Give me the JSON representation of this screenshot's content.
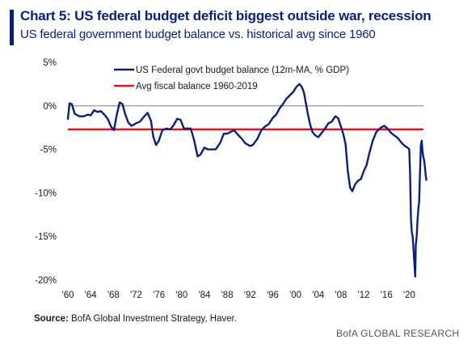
{
  "header": {
    "title": "Chart 5: US federal budget deficit biggest outside war, recession",
    "subtitle": "US federal government budget balance vs. historical avg since 1960"
  },
  "footer": {
    "source_label": "Source:",
    "source_text": "BofA Global Investment Strategy, Haver.",
    "brand": "BofA GLOBAL RESEARCH"
  },
  "colors": {
    "title": "#0b1f7a",
    "series_line": "#0b1f7a",
    "average_line": "#e8141c",
    "zero_line": "#8c8c8c"
  },
  "chart_data": {
    "type": "line",
    "title": "Chart 5: US federal budget deficit biggest outside war, recession",
    "subtitle": "US federal government budget balance vs. historical avg since 1960",
    "xlabel": "",
    "ylabel": "",
    "xlim": [
      1960,
      2022.5
    ],
    "ylim": [
      -20,
      5
    ],
    "x_ticks": [
      1960,
      1964,
      1968,
      1972,
      1976,
      1980,
      1984,
      1988,
      1992,
      1996,
      2000,
      2004,
      2008,
      2012,
      2016,
      2020
    ],
    "x_tick_labels": [
      "'60",
      "'64",
      "'68",
      "'72",
      "'76",
      "'80",
      "'84",
      "'88",
      "'92",
      "'96",
      "'00",
      "'04",
      "'08",
      "'12",
      "'16",
      "'20"
    ],
    "y_ticks": [
      5,
      0,
      -5,
      -10,
      -15,
      -20
    ],
    "y_tick_labels": [
      "5%",
      "0%",
      "-5%",
      "-10%",
      "-15%",
      "-20%"
    ],
    "grid": false,
    "legend_position": "top-left",
    "reference_lines": [
      {
        "y": 0
      }
    ],
    "series": [
      {
        "name": "US Federal govt budget balance (12m-MA, % GDP)",
        "color": "#0b1f7a",
        "points": [
          [
            1960.0,
            -1.5
          ],
          [
            1960.3,
            0.3
          ],
          [
            1960.7,
            0.2
          ],
          [
            1961.2,
            -0.9
          ],
          [
            1962.0,
            -1.2
          ],
          [
            1962.8,
            -1.2
          ],
          [
            1963.5,
            -1.0
          ],
          [
            1964.0,
            -1.1
          ],
          [
            1964.6,
            -0.5
          ],
          [
            1965.2,
            -0.7
          ],
          [
            1965.8,
            -0.6
          ],
          [
            1966.4,
            -1.0
          ],
          [
            1967.0,
            -1.5
          ],
          [
            1967.6,
            -2.4
          ],
          [
            1968.1,
            -2.8
          ],
          [
            1968.6,
            -1.0
          ],
          [
            1969.1,
            0.4
          ],
          [
            1969.6,
            0.2
          ],
          [
            1970.0,
            -0.8
          ],
          [
            1970.6,
            -1.9
          ],
          [
            1971.2,
            -2.3
          ],
          [
            1972.0,
            -2.0
          ],
          [
            1972.7,
            -1.8
          ],
          [
            1973.3,
            -1.3
          ],
          [
            1974.0,
            -0.8
          ],
          [
            1974.6,
            -1.7
          ],
          [
            1975.0,
            -3.5
          ],
          [
            1975.5,
            -4.5
          ],
          [
            1976.0,
            -4.0
          ],
          [
            1976.6,
            -2.8
          ],
          [
            1977.3,
            -2.6
          ],
          [
            1978.0,
            -2.7
          ],
          [
            1978.6,
            -2.2
          ],
          [
            1979.2,
            -1.5
          ],
          [
            1979.8,
            -1.6
          ],
          [
            1980.4,
            -2.6
          ],
          [
            1981.0,
            -2.6
          ],
          [
            1981.6,
            -2.6
          ],
          [
            1982.2,
            -4.0
          ],
          [
            1982.8,
            -5.8
          ],
          [
            1983.3,
            -5.6
          ],
          [
            1984.0,
            -4.8
          ],
          [
            1984.6,
            -5.0
          ],
          [
            1985.4,
            -5.0
          ],
          [
            1986.0,
            -5.0
          ],
          [
            1986.8,
            -4.2
          ],
          [
            1987.4,
            -3.2
          ],
          [
            1988.0,
            -3.2
          ],
          [
            1988.6,
            -3.0
          ],
          [
            1989.2,
            -2.8
          ],
          [
            1990.0,
            -3.4
          ],
          [
            1990.6,
            -3.8
          ],
          [
            1991.2,
            -4.3
          ],
          [
            1992.0,
            -4.6
          ],
          [
            1992.5,
            -4.5
          ],
          [
            1993.3,
            -3.8
          ],
          [
            1994.0,
            -2.8
          ],
          [
            1994.6,
            -2.4
          ],
          [
            1995.3,
            -2.1
          ],
          [
            1996.0,
            -1.4
          ],
          [
            1996.6,
            -1.0
          ],
          [
            1997.2,
            -0.3
          ],
          [
            1997.8,
            0.2
          ],
          [
            1998.4,
            0.8
          ],
          [
            1999.0,
            1.2
          ],
          [
            1999.6,
            1.6
          ],
          [
            2000.2,
            2.2
          ],
          [
            2000.7,
            2.5
          ],
          [
            2001.1,
            2.2
          ],
          [
            2001.5,
            1.5
          ],
          [
            2001.8,
            0.4
          ],
          [
            2002.2,
            -1.0
          ],
          [
            2002.6,
            -2.2
          ],
          [
            2003.0,
            -3.0
          ],
          [
            2003.5,
            -3.4
          ],
          [
            2004.0,
            -3.6
          ],
          [
            2004.6,
            -3.1
          ],
          [
            2005.2,
            -2.6
          ],
          [
            2005.8,
            -2.0
          ],
          [
            2006.4,
            -1.8
          ],
          [
            2007.0,
            -1.2
          ],
          [
            2007.5,
            -1.4
          ],
          [
            2008.0,
            -2.4
          ],
          [
            2008.4,
            -3.2
          ],
          [
            2008.8,
            -4.4
          ],
          [
            2009.2,
            -7.5
          ],
          [
            2009.6,
            -9.4
          ],
          [
            2010.0,
            -9.8
          ],
          [
            2010.5,
            -9.0
          ],
          [
            2011.0,
            -8.6
          ],
          [
            2011.5,
            -8.4
          ],
          [
            2012.0,
            -7.5
          ],
          [
            2012.5,
            -6.8
          ],
          [
            2013.0,
            -5.4
          ],
          [
            2013.6,
            -4.0
          ],
          [
            2014.2,
            -3.0
          ],
          [
            2015.0,
            -2.5
          ],
          [
            2015.6,
            -2.3
          ],
          [
            2016.2,
            -2.6
          ],
          [
            2016.8,
            -3.1
          ],
          [
            2017.4,
            -3.4
          ],
          [
            2018.0,
            -3.7
          ],
          [
            2018.6,
            -4.2
          ],
          [
            2019.2,
            -4.6
          ],
          [
            2019.7,
            -4.8
          ],
          [
            2020.0,
            -5.0
          ],
          [
            2020.15,
            -8.0
          ],
          [
            2020.3,
            -13.0
          ],
          [
            2020.45,
            -14.5
          ],
          [
            2020.6,
            -15.0
          ],
          [
            2020.75,
            -16.5
          ],
          [
            2020.9,
            -18.0
          ],
          [
            2021.05,
            -19.6
          ],
          [
            2021.15,
            -16.0
          ],
          [
            2021.3,
            -15.0
          ],
          [
            2021.45,
            -13.2
          ],
          [
            2021.6,
            -11.8
          ],
          [
            2021.75,
            -11.0
          ],
          [
            2021.85,
            -8.5
          ],
          [
            2021.95,
            -6.5
          ],
          [
            2022.05,
            -4.5
          ],
          [
            2022.2,
            -4.0
          ],
          [
            2022.3,
            -5.0
          ],
          [
            2022.45,
            -5.8
          ],
          [
            2022.6,
            -6.2
          ],
          [
            2022.75,
            -7.0
          ],
          [
            2022.9,
            -8.0
          ],
          [
            2023.0,
            -8.5
          ]
        ]
      },
      {
        "name": "Avg fiscal balance 1960-2019",
        "color": "#e8141c",
        "value": -2.7
      }
    ]
  }
}
